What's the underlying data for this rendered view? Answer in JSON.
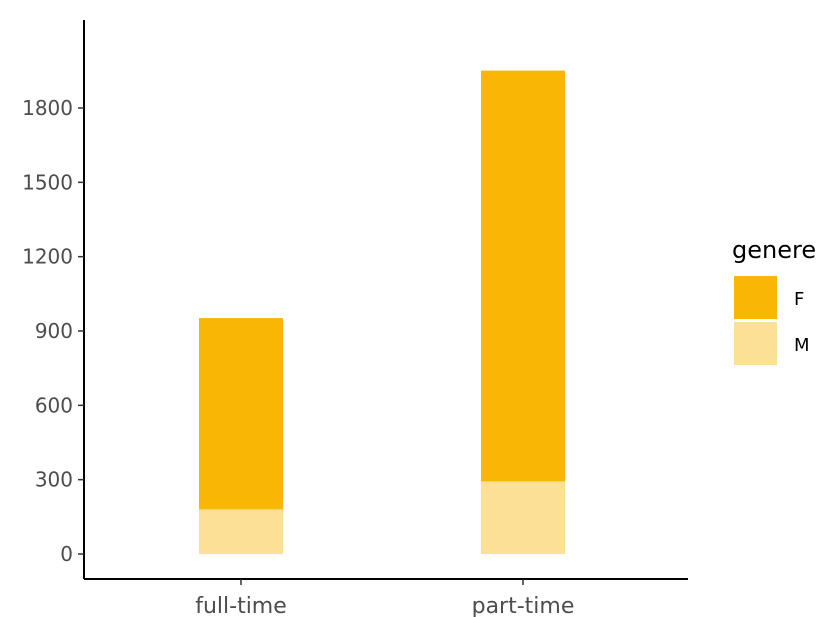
{
  "chart_data": {
    "type": "bar",
    "stacked": true,
    "title": "",
    "xlabel": "",
    "ylabel": "",
    "categories": [
      "full-time",
      "part-time"
    ],
    "series": [
      {
        "name": "M",
        "values": [
          180,
          293
        ],
        "color": "#FBE095"
      },
      {
        "name": "F",
        "values": [
          772,
          1658
        ],
        "color": "#F9B605"
      }
    ],
    "ylim": [
      0,
      2050
    ],
    "yticks": [
      0,
      300,
      600,
      900,
      1200,
      1500,
      1800
    ],
    "legend": {
      "title": "genere",
      "entries": [
        "F",
        "M"
      ],
      "placement": "right"
    },
    "grid": false
  }
}
